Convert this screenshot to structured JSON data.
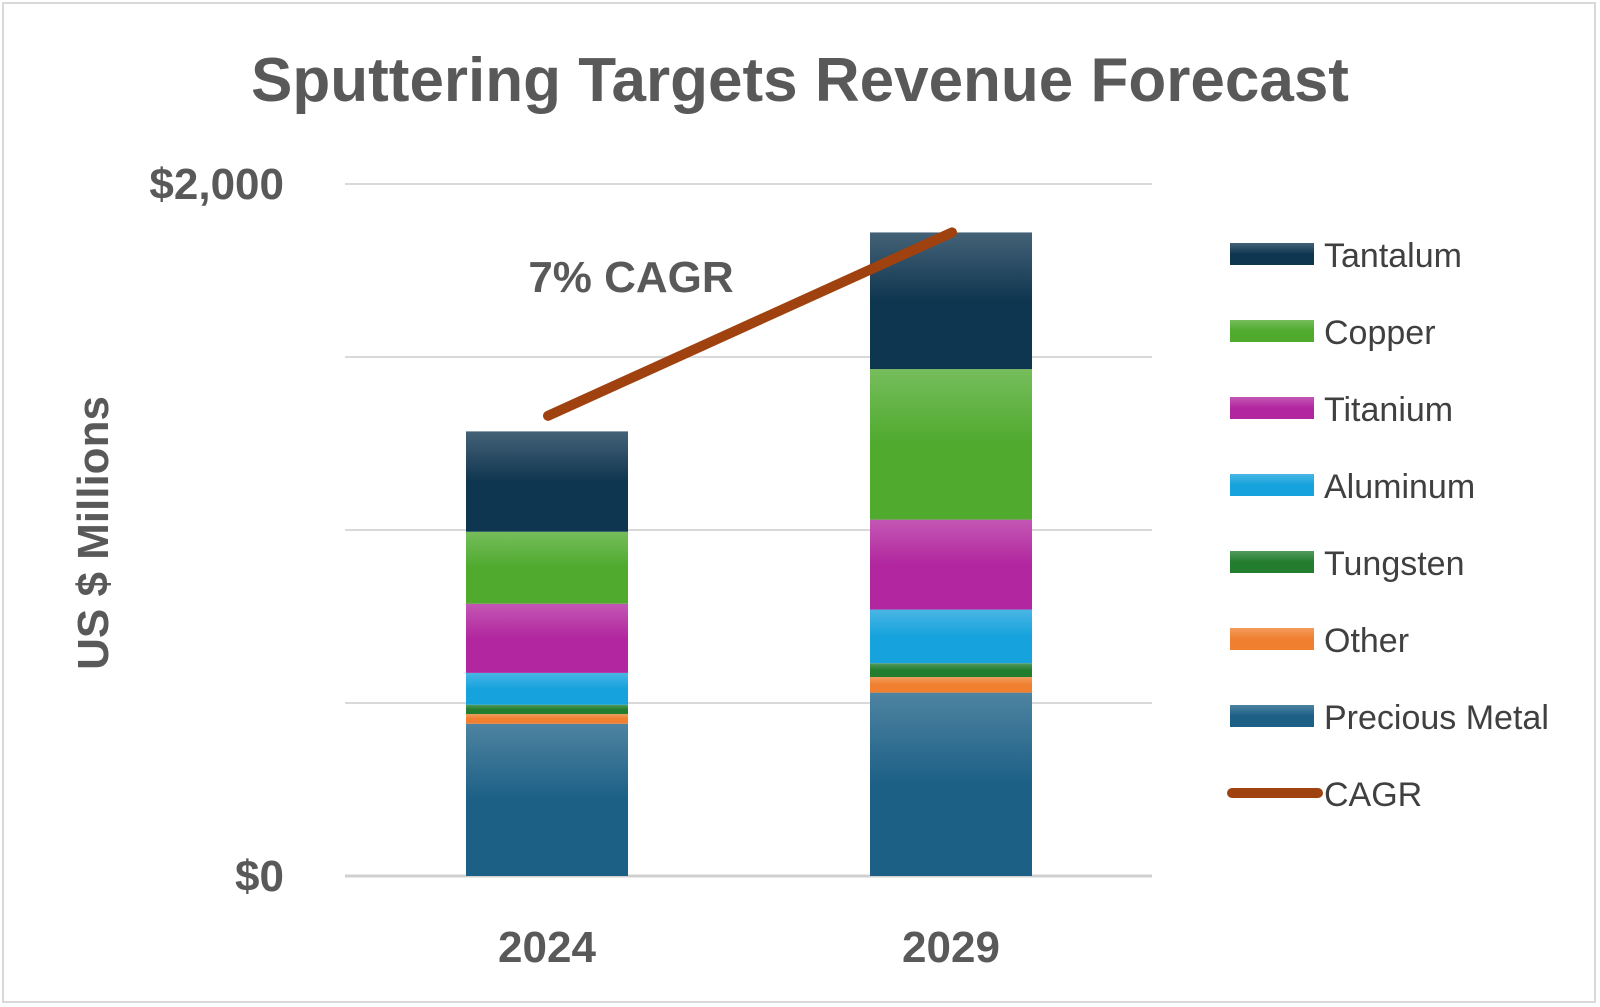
{
  "chart_data": {
    "type": "bar",
    "stacked": true,
    "title": "Sputtering Targets Revenue Forecast",
    "xlabel": "",
    "ylabel": "US $ Millions",
    "ylim": [
      0,
      2000
    ],
    "yticks_labeled": [
      "$0",
      "$2,000"
    ],
    "gridlines": [
      0,
      500,
      1000,
      1500,
      2000
    ],
    "categories": [
      "2024",
      "2029"
    ],
    "series": [
      {
        "name": "Precious Metal",
        "color": "#1c6086",
        "values": [
          440,
          530
        ]
      },
      {
        "name": "Other",
        "color": "#f07f2f",
        "values": [
          28,
          45
        ]
      },
      {
        "name": "Tungsten",
        "color": "#237d2f",
        "values": [
          27,
          40
        ]
      },
      {
        "name": "Aluminum",
        "color": "#16a2dd",
        "values": [
          92,
          155
        ]
      },
      {
        "name": "Titanium",
        "color": "#b2279f",
        "values": [
          200,
          260
        ]
      },
      {
        "name": "Copper",
        "color": "#4faa2e",
        "values": [
          208,
          435
        ]
      },
      {
        "name": "Tantalum",
        "color": "#0f3650",
        "values": [
          290,
          395
        ]
      }
    ],
    "cagr_line": {
      "name": "CAGR",
      "color": "#a0420f",
      "values": [
        1330,
        1860
      ]
    },
    "annotation": "7% CAGR",
    "legend_position": "right"
  }
}
